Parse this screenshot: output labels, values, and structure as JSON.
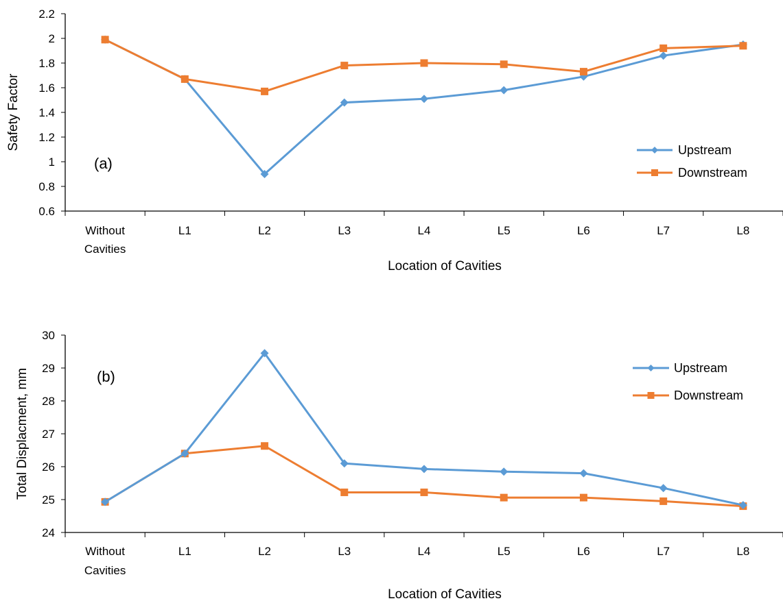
{
  "colors": {
    "upstream": "#5B9BD5",
    "downstream": "#ED7D31",
    "axis": "#000000"
  },
  "chart_data": [
    {
      "type": "line",
      "panel_label": "(a)",
      "categories": [
        [
          "Without",
          "Cavities"
        ],
        "L1",
        "L2",
        "L3",
        "L4",
        "L5",
        "L6",
        "L7",
        "L8"
      ],
      "series": [
        {
          "name": "Upstream",
          "values": [
            1.99,
            1.67,
            0.9,
            1.48,
            1.51,
            1.58,
            1.69,
            1.86,
            1.95
          ]
        },
        {
          "name": "Downstream",
          "values": [
            1.99,
            1.67,
            1.57,
            1.78,
            1.8,
            1.79,
            1.73,
            1.92,
            1.94
          ]
        }
      ],
      "xlabel": "Location of Cavities",
      "ylabel": "Safety Factor",
      "ylim": [
        0.6,
        2.2
      ],
      "yticks": [
        "0.6",
        "0.8",
        "1",
        "1.2",
        "1.4",
        "1.6",
        "1.8",
        "2",
        "2.2"
      ],
      "legend": "right",
      "grid": false
    },
    {
      "type": "line",
      "panel_label": "(b)",
      "categories": [
        [
          "Without",
          "Cavities"
        ],
        "L1",
        "L2",
        "L3",
        "L4",
        "L5",
        "L6",
        "L7",
        "L8"
      ],
      "series": [
        {
          "name": "Upstream",
          "values": [
            24.93,
            26.4,
            29.45,
            26.1,
            25.93,
            25.85,
            25.8,
            25.35,
            24.83
          ]
        },
        {
          "name": "Downstream",
          "values": [
            24.93,
            26.4,
            26.63,
            25.22,
            25.22,
            25.06,
            25.06,
            24.95,
            24.8
          ]
        }
      ],
      "xlabel": "Location of Cavities",
      "ylabel": "Total Displacment, mm",
      "ylim": [
        24,
        30
      ],
      "yticks": [
        "24",
        "25",
        "26",
        "27",
        "28",
        "29",
        "30"
      ],
      "legend": "top-right",
      "grid": false
    }
  ]
}
